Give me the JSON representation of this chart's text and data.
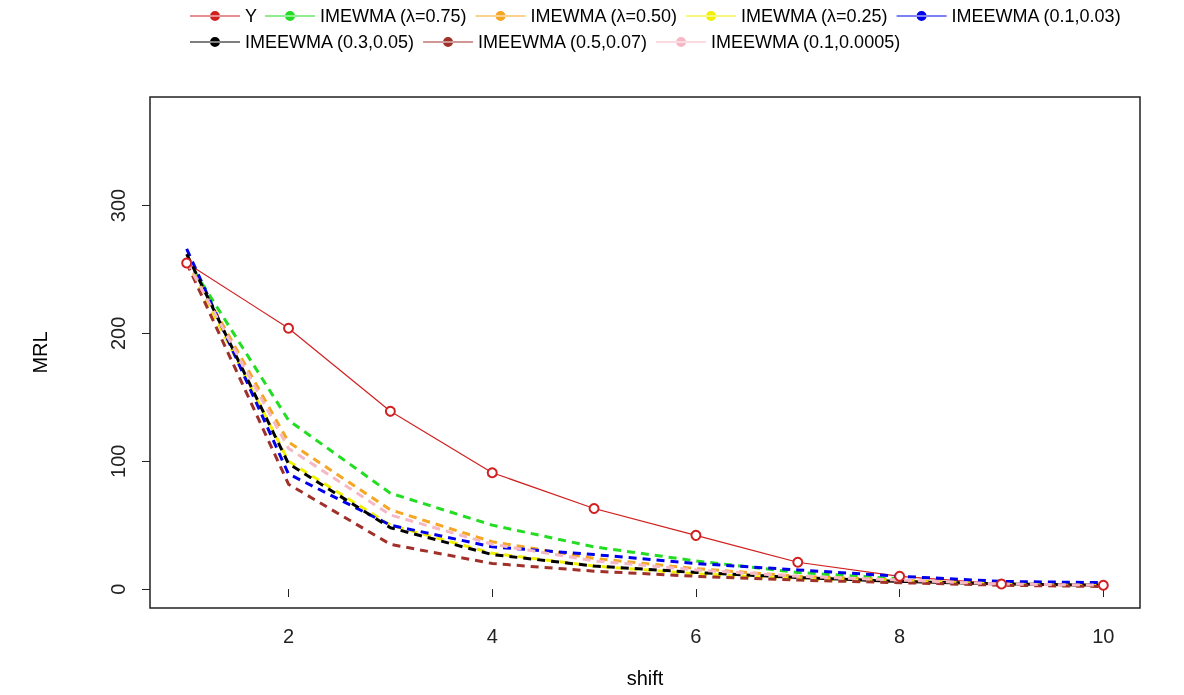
{
  "chart_data": {
    "type": "line",
    "xlabel": "shift",
    "ylabel": "MRL",
    "x": [
      1,
      2,
      3,
      4,
      5,
      6,
      7,
      8,
      9,
      10
    ],
    "xlim": [
      0.64,
      10.36
    ],
    "xticks": [
      2,
      4,
      6,
      8,
      10
    ],
    "ylim": [
      -14.8,
      384.8
    ],
    "yticks": [
      0,
      100,
      200,
      300
    ],
    "grid": false,
    "legend": "top",
    "series": [
      {
        "name": "Y",
        "color": "#d02020",
        "marker": "circle",
        "line_style": "solid",
        "values": [
          255,
          204,
          139,
          91,
          63,
          42,
          21,
          10,
          4,
          3
        ]
      },
      {
        "name": "IMEWMA (λ=0.75)",
        "color": "#22dd22",
        "marker": "none",
        "line_style": "dashed",
        "values": [
          258,
          132,
          75,
          50,
          33,
          22,
          13,
          8,
          null,
          null
        ]
      },
      {
        "name": "IMEWMA (λ=0.50)",
        "color": "#f5a623",
        "marker": "none",
        "line_style": "dashed",
        "values": [
          257,
          115,
          62,
          37,
          24,
          16,
          10,
          7,
          4,
          3
        ]
      },
      {
        "name": "IMEWMA (λ=0.25)",
        "color": "#f0f000",
        "marker": "none",
        "line_style": "dashed",
        "values": [
          256,
          100,
          50,
          28,
          18,
          12,
          8,
          6,
          4,
          3
        ]
      },
      {
        "name": "IMEEWMA (0.1,0.03)",
        "color": "#0000ee",
        "marker": "none",
        "line_style": "dashed",
        "values": [
          266,
          90,
          50,
          33,
          27,
          20,
          15,
          10,
          6,
          5
        ]
      },
      {
        "name": "IMEEWMA (0.3,0.05)",
        "color": "#000000",
        "marker": "none",
        "line_style": "dashed",
        "values": [
          262,
          98,
          48,
          27,
          18,
          13,
          9,
          6,
          4,
          3
        ]
      },
      {
        "name": "IMEEWMA (0.5,0.07)",
        "color": "#a0302a",
        "marker": "none",
        "line_style": "dashed",
        "values": [
          255,
          82,
          35,
          20,
          14,
          10,
          7,
          5,
          3,
          2
        ]
      },
      {
        "name": "IMEEWMA (0.1,0.0005)",
        "color": "#f5b8c4",
        "marker": "none",
        "line_style": "dashed",
        "values": [
          256,
          110,
          58,
          35,
          22,
          15,
          10,
          7,
          4,
          3
        ]
      }
    ]
  }
}
